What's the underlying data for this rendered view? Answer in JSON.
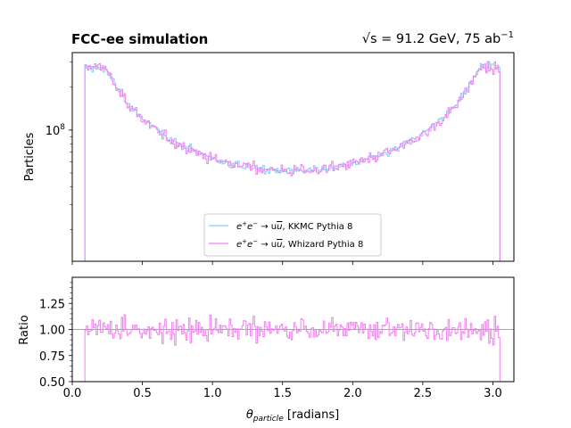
{
  "chart_data": {
    "type": "histogram",
    "title_left": "FCC-ee simulation",
    "title_right_prefix": "√s = 91.2 GeV, 75 ab",
    "title_right_superscript": "−1",
    "xlabel": "θ",
    "xlabel_subscript": "particle",
    "xlabel_unit": " [radians]",
    "top_panel": {
      "ylabel": "Particles",
      "yscale": "log",
      "ylim": [
        12000000,
        350000000
      ],
      "ytick_label": "10",
      "ytick_exponent": "8",
      "ytick_value": 100000000
    },
    "bottom_panel": {
      "ylabel": "Ratio",
      "ylim": [
        0.5,
        1.5
      ],
      "yticks": [
        0.5,
        0.75,
        1.0,
        1.25
      ],
      "ytick_labels": [
        "0.50",
        "0.75",
        "1.00",
        "1.25"
      ],
      "reference_line": 1.0
    },
    "xlim": [
      0.0,
      3.15
    ],
    "xticks": [
      0.0,
      0.5,
      1.0,
      1.5,
      2.0,
      2.5,
      3.0
    ],
    "xtick_labels": [
      "0.0",
      "0.5",
      "1.0",
      "1.5",
      "2.0",
      "2.5",
      "3.0"
    ],
    "binning": {
      "start": 0.0,
      "width": 0.01,
      "nbins": 315
    },
    "nonzero_range": [
      0.09,
      3.05
    ],
    "shape_approx": "counts ≈ 1.6e8 / sin(θ) dip to ≈ 5e7 near θ = 1.6–2.0, peaks ≈ 2.7e8 at θ = 0.1 and 3.04",
    "legend_position": "lower center",
    "series": [
      {
        "name_prefix": "e",
        "name_sup1": "+",
        "name_mid": "e",
        "name_sup2": "−",
        "name_arrow": " → u",
        "name_ubar": "u",
        "name_suffix": ", KKMC Pythia 8",
        "color": "#87cefa"
      },
      {
        "name_prefix": "e",
        "name_sup1": "+",
        "name_mid": "e",
        "name_sup2": "−",
        "name_arrow": " → u",
        "name_ubar": "u",
        "name_suffix": ", Whizard Pythia 8",
        "color": "#ee82ee"
      }
    ],
    "ratio_color": "#ee82ee",
    "ratio_noise_range": [
      0.85,
      1.35
    ]
  }
}
